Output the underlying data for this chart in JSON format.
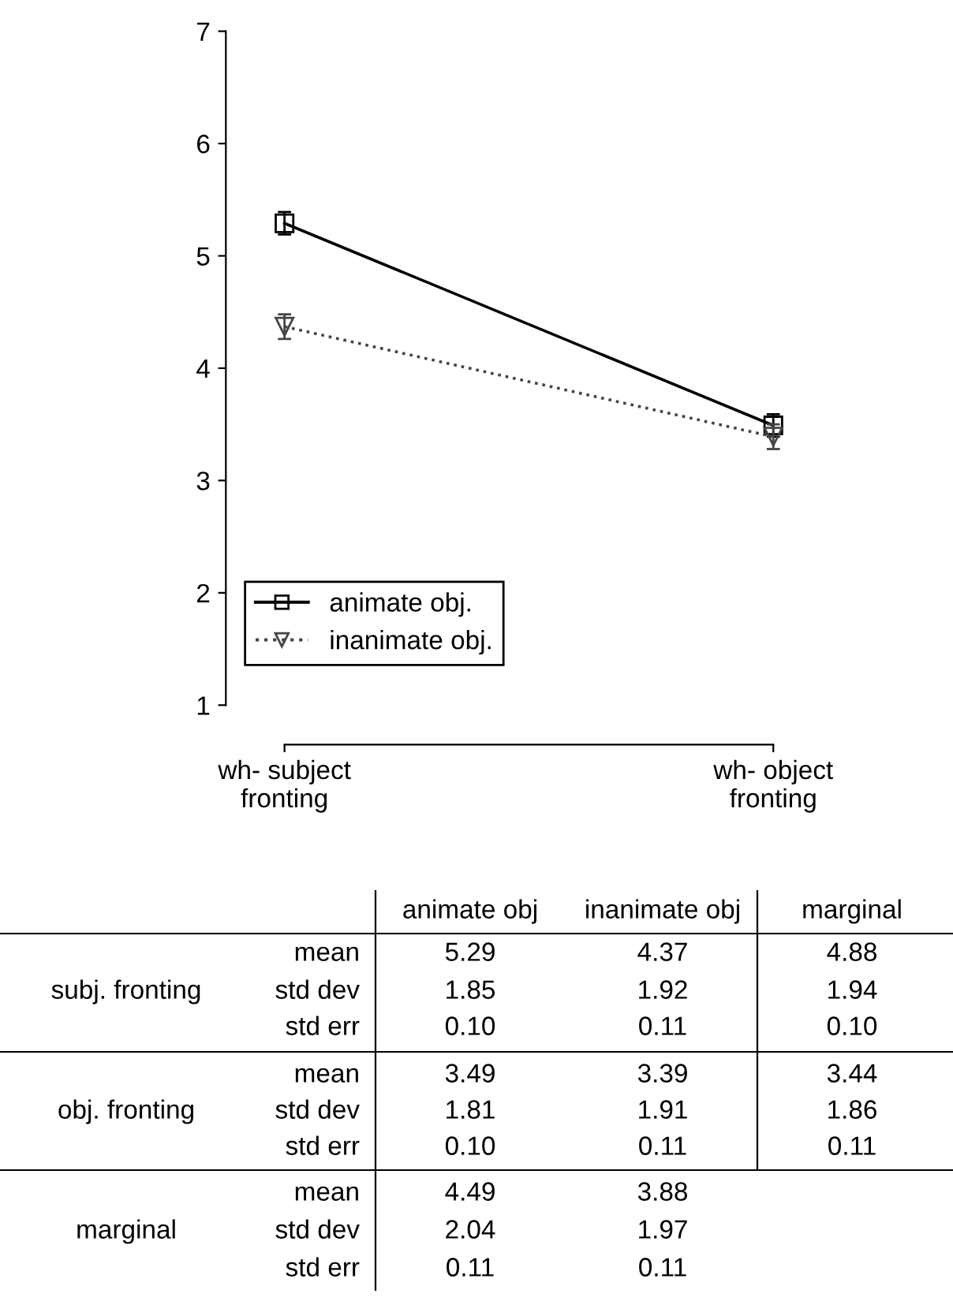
{
  "chart_data": {
    "type": "line",
    "categories": [
      "wh- subject\nfronting",
      "wh- object\nfronting"
    ],
    "series": [
      {
        "name": "animate obj.",
        "color": "#000000",
        "values": [
          5.29,
          3.49
        ],
        "errors": [
          0.1,
          0.1
        ],
        "marker": "square",
        "line_style": "solid"
      },
      {
        "name": "inanimate obj.",
        "color": "#444444",
        "values": [
          4.37,
          3.39
        ],
        "errors": [
          0.11,
          0.11
        ],
        "marker": "triangle_down",
        "line_style": "dotted"
      }
    ],
    "ylim": [
      1,
      7
    ],
    "yticks": [
      1,
      2,
      3,
      4,
      5,
      6,
      7
    ],
    "grid": false,
    "legend": "bottom left",
    "annotations": [
      "animate obj",
      "inanimate obj",
      "marginal",
      "mean",
      "5.29",
      "4.37",
      "4.88",
      "subj. fronting",
      "std dev",
      "1.85",
      "1.92",
      "1.94",
      "std err",
      "0.10",
      "0.11",
      "0.10",
      "mean",
      "3.49",
      "3.39",
      "3.44",
      "obj. fronting",
      "std dev",
      "1.81",
      "1.91",
      "1.86",
      "std err",
      "0.10",
      "0.11",
      "0.11",
      "mean",
      "4.49",
      "3.88",
      "marginal",
      "std dev",
      "2.04",
      "1.97",
      "std err",
      "0.11",
      "0.11"
    ]
  }
}
